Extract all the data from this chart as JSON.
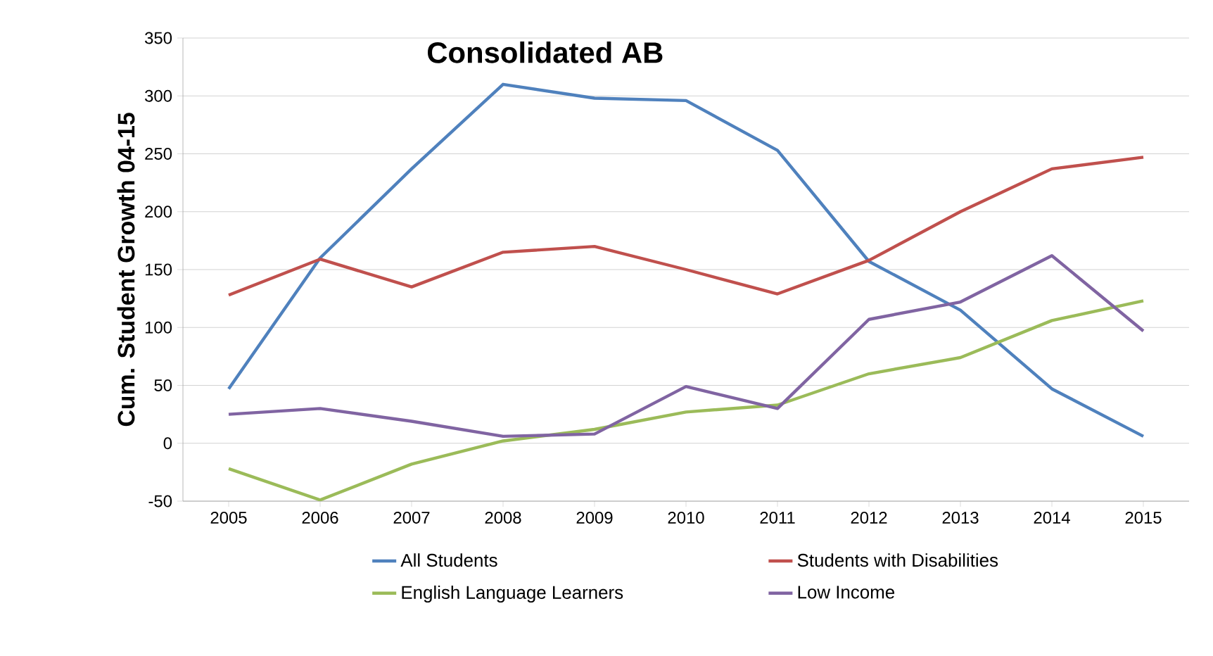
{
  "chart_data": {
    "type": "line",
    "title": "Consolidated AB",
    "ylabel": "Cum. Student Growth 04-15",
    "categories": [
      "2005",
      "2006",
      "2007",
      "2008",
      "2009",
      "2010",
      "2011",
      "2012",
      "2013",
      "2014",
      "2015"
    ],
    "series": [
      {
        "name": "All Students",
        "color": "#4f81bd",
        "values": [
          47,
          160,
          237,
          310,
          298,
          296,
          253,
          157,
          115,
          47,
          6
        ]
      },
      {
        "name": "Students with Disabilities",
        "color": "#c0504d",
        "values": [
          128,
          159,
          135,
          165,
          170,
          150,
          129,
          158,
          200,
          237,
          247
        ]
      },
      {
        "name": "English Language Learners",
        "color": "#9bbb59",
        "values": [
          -22,
          -49,
          -18,
          2,
          12,
          27,
          33,
          60,
          74,
          106,
          123
        ]
      },
      {
        "name": "Low Income",
        "color": "#8064a2",
        "values": [
          25,
          30,
          19,
          6,
          8,
          49,
          30,
          107,
          122,
          162,
          97
        ]
      }
    ],
    "ylim": [
      -50,
      350
    ],
    "yticks": [
      -50,
      0,
      50,
      100,
      150,
      200,
      250,
      300,
      350
    ],
    "grid": "y",
    "legend": "bottom",
    "marker": "none",
    "line_style": "solid"
  }
}
